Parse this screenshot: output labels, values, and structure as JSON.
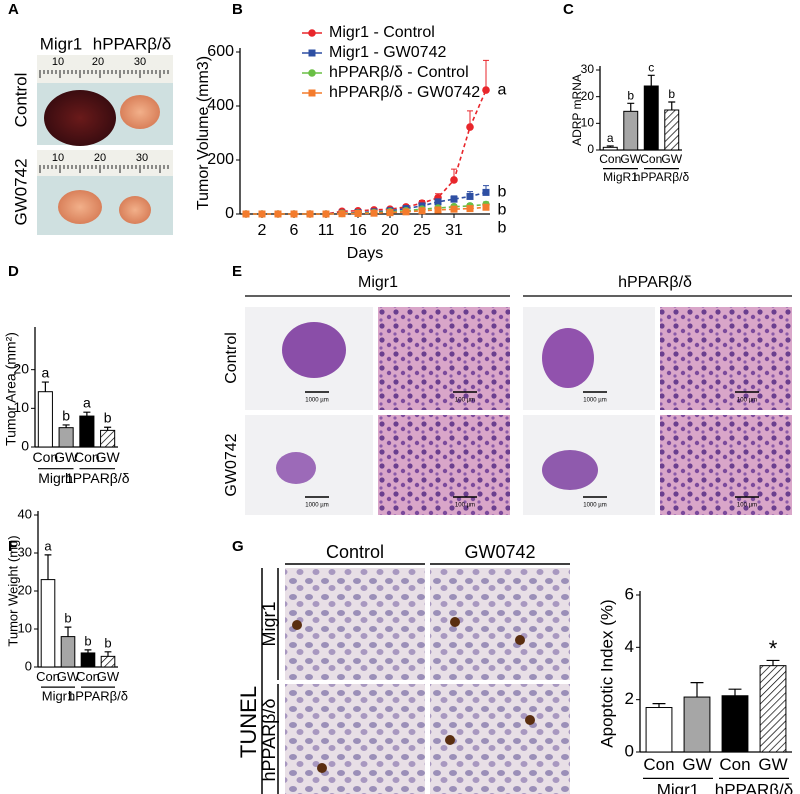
{
  "panel_labels": [
    "A",
    "B",
    "C",
    "D",
    "E",
    "F",
    "G"
  ],
  "panel_a": {
    "columns": [
      "Migr1",
      "hPPARβ/δ"
    ],
    "rows": [
      "Control",
      "GW0742"
    ],
    "ruler_labels": [
      [
        "10",
        "20",
        "30"
      ],
      [
        "10",
        "20",
        "30"
      ]
    ]
  },
  "panel_e": {
    "columns": [
      "Migr1",
      "hPPARβ/δ"
    ],
    "rows": [
      "Control",
      "GW0742"
    ],
    "scale_labels": [
      "1000 µm",
      "100 µm",
      "1000 µm",
      "100 µm",
      "1000 µm",
      "100 µm",
      "1000 µm",
      "100 µm"
    ]
  },
  "panel_g": {
    "assay": "TUNEL",
    "columns": [
      "Control",
      "GW0742"
    ],
    "rows": [
      "Migr1",
      "hPPARβ/δ"
    ]
  },
  "chart_data": [
    {
      "type": "line",
      "y_label": "Tumor Volume (mm3)",
      "x_label": "Days",
      "categories": [
        null,
        "2",
        null,
        "6",
        null,
        "11",
        null,
        "16",
        null,
        "20",
        null,
        "25",
        null,
        "31",
        null,
        null
      ],
      "ylim": [
        0,
        600
      ],
      "yticks": [
        0,
        200,
        400,
        600
      ],
      "series": [
        {
          "name": "Migr1 - Control",
          "color": "#e8262b",
          "marker": "circle",
          "end_label": "a",
          "values": [
            0,
            0,
            0,
            0,
            0,
            0,
            10,
            12,
            15,
            18,
            26,
            40,
            60,
            126,
            322,
            459
          ],
          "errors": [
            0,
            0,
            0,
            0,
            0,
            0,
            3,
            4,
            5,
            5,
            8,
            10,
            15,
            40,
            60,
            110
          ]
        },
        {
          "name": "Migr1 - GW0742",
          "color": "#2e4fa3",
          "marker": "square",
          "end_label": "b",
          "values": [
            0,
            0,
            0,
            0,
            0,
            0,
            3,
            5,
            8,
            12,
            20,
            30,
            45,
            55,
            65,
            80
          ],
          "errors": [
            0,
            0,
            0,
            0,
            0,
            0,
            2,
            2,
            3,
            4,
            6,
            8,
            10,
            12,
            18,
            25
          ]
        },
        {
          "name": "hPPARβ/δ - Control",
          "color": "#6abf45",
          "marker": "circle",
          "end_label": "b",
          "values": [
            0,
            0,
            0,
            0,
            0,
            0,
            2,
            3,
            5,
            8,
            12,
            18,
            22,
            27,
            30,
            35
          ],
          "errors": [
            0,
            0,
            0,
            0,
            0,
            0,
            1,
            1,
            2,
            3,
            4,
            5,
            6,
            7,
            8,
            10
          ]
        },
        {
          "name": "hPPARβ/δ - GW0742",
          "color": "#f47b2c",
          "marker": "square",
          "end_label": "b",
          "values": [
            0,
            0,
            0,
            0,
            0,
            0,
            1,
            2,
            3,
            5,
            8,
            12,
            15,
            18,
            20,
            25
          ],
          "errors": [
            0,
            0,
            0,
            0,
            0,
            0,
            1,
            1,
            1,
            2,
            3,
            4,
            4,
            5,
            6,
            8
          ]
        }
      ]
    },
    {
      "type": "bar",
      "y_label": "ADRP mRNA",
      "categories": [
        "Con",
        "GW",
        "Con",
        "GW"
      ],
      "groups": [
        "MigR1",
        "hPPARβ/δ"
      ],
      "values": [
        1,
        14.5,
        24,
        15
      ],
      "errors": [
        0.5,
        3,
        4,
        3
      ],
      "annotations": [
        "a",
        "b",
        "c",
        "b"
      ],
      "colors": [
        "#ffffff",
        "#a6a6a6",
        "#000000",
        "#ffffff"
      ],
      "patterns": [
        "solid",
        "solid",
        "solid",
        "hatch"
      ],
      "ylim": [
        0,
        30
      ],
      "yticks": [
        0,
        10,
        20,
        30
      ]
    },
    {
      "type": "bar",
      "y_label": "Tumor Area (mm²)",
      "categories": [
        "Con",
        "GW",
        "Con",
        "GW"
      ],
      "groups": [
        "Migr1",
        "hPPARβ/δ"
      ],
      "values": [
        14.3,
        5,
        8,
        4.3
      ],
      "errors": [
        2.5,
        0.7,
        1,
        0.8
      ],
      "annotations": [
        "a",
        "b",
        "a",
        "b"
      ],
      "colors": [
        "#ffffff",
        "#a6a6a6",
        "#000000",
        "#ffffff"
      ],
      "patterns": [
        "solid",
        "solid",
        "solid",
        "hatch"
      ],
      "ylim": [
        0,
        30
      ],
      "yticks": [
        0,
        10,
        20
      ]
    },
    {
      "type": "bar",
      "y_label": "Tumor Weight (mg)",
      "categories": [
        "Con",
        "GW",
        "Con",
        "GW"
      ],
      "groups": [
        "Migr1",
        "hPPARβ/δ"
      ],
      "values": [
        23,
        8,
        3.7,
        2.8
      ],
      "errors": [
        6.5,
        2.5,
        0.8,
        1.2
      ],
      "annotations": [
        "a",
        "b",
        "b",
        "b"
      ],
      "colors": [
        "#ffffff",
        "#a6a6a6",
        "#000000",
        "#ffffff"
      ],
      "patterns": [
        "solid",
        "solid",
        "solid",
        "hatch"
      ],
      "ylim": [
        0,
        40
      ],
      "yticks": [
        0,
        10,
        20,
        30,
        40
      ]
    },
    {
      "type": "bar",
      "y_label": "Apoptotic Index (%)",
      "categories": [
        "Con",
        "GW",
        "Con",
        "GW"
      ],
      "groups": [
        "Migr1",
        "hPPARβ/δ"
      ],
      "values": [
        1.7,
        2.1,
        2.15,
        3.3
      ],
      "errors": [
        0.15,
        0.55,
        0.25,
        0.2
      ],
      "annotations": [
        null,
        null,
        null,
        "*"
      ],
      "colors": [
        "#ffffff",
        "#a6a6a6",
        "#000000",
        "#ffffff"
      ],
      "patterns": [
        "solid",
        "solid",
        "solid",
        "hatch"
      ],
      "ylim": [
        0,
        6
      ],
      "yticks": [
        0,
        2,
        4,
        6
      ]
    }
  ]
}
